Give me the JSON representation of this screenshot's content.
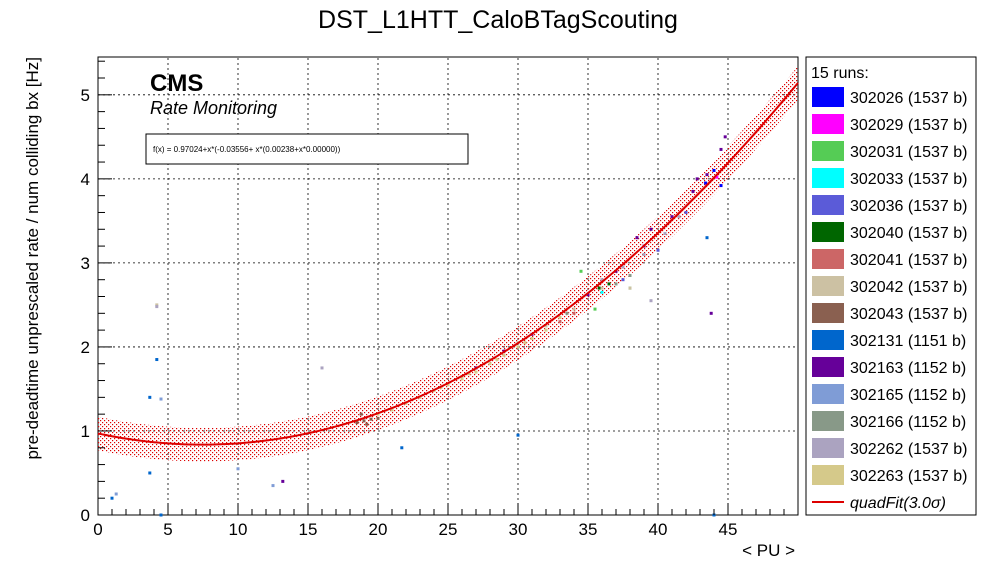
{
  "chart_data": {
    "type": "scatter",
    "title": "DST_L1HTT_CaloBTagScouting",
    "xlabel": "< PU >",
    "ylabel": "pre-deadtime unprescaled rate / num colliding bx [Hz]",
    "xlim": [
      0,
      50
    ],
    "ylim": [
      0,
      5.45
    ],
    "x_ticks": [
      0,
      5,
      10,
      15,
      20,
      25,
      30,
      35,
      40,
      45
    ],
    "y_ticks": [
      0,
      1,
      2,
      3,
      4,
      5
    ],
    "grid": true,
    "legend_position": "right",
    "legend_header": "15 runs:",
    "annotations": {
      "cms": "CMS",
      "subtitle": "Rate Monitoring",
      "formula": "f(x) = 0.97024+x*(-0.03556+ x*(0.00238+x*0.00000))"
    },
    "series": [
      {
        "name": "302026 (1537 b)",
        "color": "#0000ff",
        "points": [
          [
            44.5,
            3.92
          ],
          [
            44.0,
            4.1
          ],
          [
            43.4,
            3.95
          ]
        ]
      },
      {
        "name": "302029 (1537 b)",
        "color": "#ff00ff",
        "points": [
          [
            44.2,
            4.02
          ]
        ]
      },
      {
        "name": "302031 (1537 b)",
        "color": "#55cc55",
        "points": [
          [
            38.0,
            2.7
          ],
          [
            34.5,
            2.9
          ],
          [
            35.5,
            2.45
          ]
        ]
      },
      {
        "name": "302033 (1537 b)",
        "color": "#00ffff",
        "points": [
          [
            36.0,
            2.65
          ]
        ]
      },
      {
        "name": "302036 (1537 b)",
        "color": "#5b5bd8",
        "points": [
          [
            37.5,
            2.8
          ],
          [
            40.0,
            3.15
          ],
          [
            42.0,
            3.6
          ]
        ]
      },
      {
        "name": "302040 (1537 b)",
        "color": "#006600",
        "points": [
          [
            35.8,
            2.7
          ],
          [
            36.5,
            2.75
          ]
        ]
      },
      {
        "name": "302041 (1537 b)",
        "color": "#cc6666",
        "points": [
          [
            33.0,
            2.3
          ],
          [
            34.0,
            2.4
          ]
        ]
      },
      {
        "name": "302042 (1537 b)",
        "color": "#ccc1a3",
        "points": [
          [
            26.0,
            1.65
          ],
          [
            28.0,
            1.85
          ],
          [
            30.0,
            2.05
          ],
          [
            32.0,
            2.25
          ],
          [
            34.0,
            2.45
          ],
          [
            36.0,
            2.7
          ],
          [
            4.2,
            2.5
          ],
          [
            38.0,
            2.7
          ]
        ]
      },
      {
        "name": "302043 (1537 b)",
        "color": "#8a6050",
        "points": [
          [
            18.5,
            1.1
          ],
          [
            19.0,
            1.12
          ],
          [
            19.5,
            1.14
          ],
          [
            20.0,
            1.15
          ],
          [
            18.8,
            1.2
          ],
          [
            19.2,
            1.08
          ]
        ]
      },
      {
        "name": "302131 (1151 b)",
        "color": "#0066cc",
        "points": [
          [
            4.2,
            1.85
          ],
          [
            3.7,
            1.4
          ],
          [
            3.7,
            0.5
          ],
          [
            1.0,
            0.2
          ],
          [
            4.5,
            0.0
          ],
          [
            43.5,
            3.3
          ],
          [
            21.7,
            0.8
          ],
          [
            30.0,
            0.95
          ],
          [
            44.0,
            0.0
          ]
        ]
      },
      {
        "name": "302163 (1152 b)",
        "color": "#660099",
        "points": [
          [
            27.0,
            1.75
          ],
          [
            29.0,
            1.95
          ],
          [
            31.0,
            2.15
          ],
          [
            33.0,
            2.35
          ],
          [
            35.0,
            2.62
          ],
          [
            37.0,
            2.9
          ],
          [
            39.0,
            3.2
          ],
          [
            41.0,
            3.55
          ],
          [
            42.5,
            3.85
          ],
          [
            43.5,
            4.05
          ],
          [
            44.5,
            4.35
          ],
          [
            44.8,
            4.5
          ],
          [
            42.8,
            4.0
          ],
          [
            38.5,
            3.3
          ],
          [
            39.5,
            3.4
          ],
          [
            43.8,
            2.4
          ],
          [
            13.2,
            0.4
          ]
        ]
      },
      {
        "name": "302165 (1152 b)",
        "color": "#7f9cd6",
        "points": [
          [
            4.5,
            1.38
          ],
          [
            12.5,
            0.35
          ],
          [
            10.0,
            0.55
          ],
          [
            1.3,
            0.25
          ]
        ]
      },
      {
        "name": "302166 (1152 b)",
        "color": "#889988",
        "points": [
          [
            37.0,
            2.75
          ],
          [
            38.0,
            2.85
          ],
          [
            33.5,
            2.4
          ]
        ]
      },
      {
        "name": "302262 (1537 b)",
        "color": "#aba3c0",
        "points": [
          [
            36.0,
            2.8
          ],
          [
            37.5,
            2.95
          ],
          [
            39.0,
            3.1
          ],
          [
            40.5,
            3.35
          ],
          [
            41.5,
            3.55
          ],
          [
            39.5,
            2.55
          ],
          [
            16.0,
            1.75
          ],
          [
            4.2,
            2.48
          ]
        ]
      },
      {
        "name": "302263 (1537 b)",
        "color": "#d5c98a",
        "points": [
          [
            20.0,
            1.2
          ],
          [
            21.0,
            1.25
          ],
          [
            22.0,
            1.33
          ],
          [
            23.0,
            1.4
          ],
          [
            24.0,
            1.48
          ],
          [
            25.0,
            1.55
          ],
          [
            26.0,
            1.62
          ],
          [
            27.0,
            1.7
          ],
          [
            28.0,
            1.8
          ],
          [
            29.0,
            1.9
          ],
          [
            30.0,
            2.0
          ],
          [
            31.0,
            2.1
          ],
          [
            32.0,
            2.2
          ],
          [
            33.0,
            2.35
          ],
          [
            24.5,
            1.52
          ],
          [
            26.5,
            1.68
          ],
          [
            28.5,
            1.85
          ],
          [
            30.5,
            2.05
          ]
        ]
      }
    ],
    "fit": {
      "name": "quadFit(3.0σ)",
      "color": "#dd0000",
      "coefficients": [
        0.97024,
        -0.03556,
        0.00238,
        0.0
      ],
      "band_sigma": 0.2
    }
  }
}
